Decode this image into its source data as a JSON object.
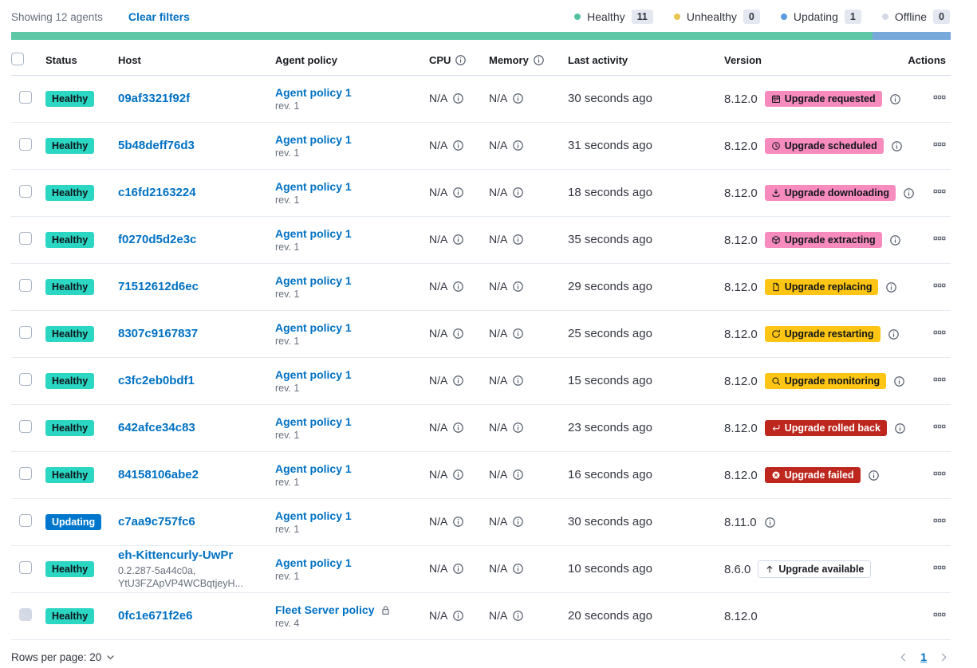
{
  "topbar": {
    "showing": "Showing 12 agents",
    "clear_filters": "Clear filters"
  },
  "legend": [
    {
      "label": "Healthy",
      "count": "11",
      "color": "#54c2a2"
    },
    {
      "label": "Unhealthy",
      "count": "0",
      "color": "#e7c54e"
    },
    {
      "label": "Updating",
      "count": "1",
      "color": "#599bde"
    },
    {
      "label": "Offline",
      "count": "0",
      "color": "#d3dae6"
    }
  ],
  "health_bar": {
    "segments": [
      {
        "status": "healthy",
        "color": "#5ec8a6",
        "fraction": 11
      },
      {
        "status": "updating",
        "color": "#78a9db",
        "fraction": 1
      }
    ]
  },
  "table": {
    "headers": {
      "status": "Status",
      "host": "Host",
      "policy": "Agent policy",
      "cpu": "CPU",
      "memory": "Memory",
      "last_activity": "Last activity",
      "version": "Version",
      "actions": "Actions"
    }
  },
  "rows": [
    {
      "status": {
        "label": "Healthy",
        "variant": "success"
      },
      "host": {
        "name": "09af3321f92f",
        "sub": []
      },
      "policy": {
        "name": "Agent policy 1",
        "rev": "rev. 1",
        "locked": false
      },
      "cpu": "N/A",
      "memory": "N/A",
      "last_activity": "30 seconds ago",
      "version": "8.12.0",
      "upgrade_badge": {
        "label": "Upgrade requested",
        "icon": "calendar-icon",
        "variant": "pink"
      },
      "version_info_icon": true,
      "checkbox_disabled": false
    },
    {
      "status": {
        "label": "Healthy",
        "variant": "success"
      },
      "host": {
        "name": "5b48deff76d3",
        "sub": []
      },
      "policy": {
        "name": "Agent policy 1",
        "rev": "rev. 1",
        "locked": false
      },
      "cpu": "N/A",
      "memory": "N/A",
      "last_activity": "31 seconds ago",
      "version": "8.12.0",
      "upgrade_badge": {
        "label": "Upgrade scheduled",
        "icon": "clock-icon",
        "variant": "pink"
      },
      "version_info_icon": true,
      "checkbox_disabled": false
    },
    {
      "status": {
        "label": "Healthy",
        "variant": "success"
      },
      "host": {
        "name": "c16fd2163224",
        "sub": []
      },
      "policy": {
        "name": "Agent policy 1",
        "rev": "rev. 1",
        "locked": false
      },
      "cpu": "N/A",
      "memory": "N/A",
      "last_activity": "18 seconds ago",
      "version": "8.12.0",
      "upgrade_badge": {
        "label": "Upgrade downloading",
        "icon": "download-icon",
        "variant": "pink"
      },
      "version_info_icon": true,
      "checkbox_disabled": false
    },
    {
      "status": {
        "label": "Healthy",
        "variant": "success"
      },
      "host": {
        "name": "f0270d5d2e3c",
        "sub": []
      },
      "policy": {
        "name": "Agent policy 1",
        "rev": "rev. 1",
        "locked": false
      },
      "cpu": "N/A",
      "memory": "N/A",
      "last_activity": "35 seconds ago",
      "version": "8.12.0",
      "upgrade_badge": {
        "label": "Upgrade extracting",
        "icon": "package-icon",
        "variant": "pink"
      },
      "version_info_icon": true,
      "checkbox_disabled": false
    },
    {
      "status": {
        "label": "Healthy",
        "variant": "success"
      },
      "host": {
        "name": "71512612d6ec",
        "sub": []
      },
      "policy": {
        "name": "Agent policy 1",
        "rev": "rev. 1",
        "locked": false
      },
      "cpu": "N/A",
      "memory": "N/A",
      "last_activity": "29 seconds ago",
      "version": "8.12.0",
      "upgrade_badge": {
        "label": "Upgrade replacing",
        "icon": "document-icon",
        "variant": "warning"
      },
      "version_info_icon": true,
      "checkbox_disabled": false
    },
    {
      "status": {
        "label": "Healthy",
        "variant": "success"
      },
      "host": {
        "name": "8307c9167837",
        "sub": []
      },
      "policy": {
        "name": "Agent policy 1",
        "rev": "rev. 1",
        "locked": false
      },
      "cpu": "N/A",
      "memory": "N/A",
      "last_activity": "25 seconds ago",
      "version": "8.12.0",
      "upgrade_badge": {
        "label": "Upgrade restarting",
        "icon": "refresh-icon",
        "variant": "warning"
      },
      "version_info_icon": true,
      "checkbox_disabled": false
    },
    {
      "status": {
        "label": "Healthy",
        "variant": "success"
      },
      "host": {
        "name": "c3fc2eb0bdf1",
        "sub": []
      },
      "policy": {
        "name": "Agent policy 1",
        "rev": "rev. 1",
        "locked": false
      },
      "cpu": "N/A",
      "memory": "N/A",
      "last_activity": "15 seconds ago",
      "version": "8.12.0",
      "upgrade_badge": {
        "label": "Upgrade monitoring",
        "icon": "inspect-icon",
        "variant": "warning"
      },
      "version_info_icon": true,
      "checkbox_disabled": false
    },
    {
      "status": {
        "label": "Healthy",
        "variant": "success"
      },
      "host": {
        "name": "642afce34c83",
        "sub": []
      },
      "policy": {
        "name": "Agent policy 1",
        "rev": "rev. 1",
        "locked": false
      },
      "cpu": "N/A",
      "memory": "N/A",
      "last_activity": "23 seconds ago",
      "version": "8.12.0",
      "upgrade_badge": {
        "label": "Upgrade rolled back",
        "icon": "return-icon",
        "variant": "danger"
      },
      "version_info_icon": true,
      "checkbox_disabled": false
    },
    {
      "status": {
        "label": "Healthy",
        "variant": "success"
      },
      "host": {
        "name": "84158106abe2",
        "sub": []
      },
      "policy": {
        "name": "Agent policy 1",
        "rev": "rev. 1",
        "locked": false
      },
      "cpu": "N/A",
      "memory": "N/A",
      "last_activity": "16 seconds ago",
      "version": "8.12.0",
      "upgrade_badge": {
        "label": "Upgrade failed",
        "icon": "error-icon",
        "variant": "danger"
      },
      "version_info_icon": true,
      "checkbox_disabled": false
    },
    {
      "status": {
        "label": "Updating",
        "variant": "primary"
      },
      "host": {
        "name": "c7aa9c757fc6",
        "sub": []
      },
      "policy": {
        "name": "Agent policy 1",
        "rev": "rev. 1",
        "locked": false
      },
      "cpu": "N/A",
      "memory": "N/A",
      "last_activity": "30 seconds ago",
      "version": "8.11.0",
      "upgrade_badge": null,
      "version_info_icon": true,
      "checkbox_disabled": false
    },
    {
      "status": {
        "label": "Healthy",
        "variant": "success"
      },
      "host": {
        "name": "eh-Kittencurly-UwPr",
        "sub": [
          "0.2.287-5a44c0a,",
          "YtU3FZApVP4WCBqtjeyH..."
        ]
      },
      "policy": {
        "name": "Agent policy 1",
        "rev": "rev. 1",
        "locked": false
      },
      "cpu": "N/A",
      "memory": "N/A",
      "last_activity": "10 seconds ago",
      "version": "8.6.0",
      "upgrade_badge": {
        "label": "Upgrade available",
        "icon": "up-arrow-icon",
        "variant": "hollow"
      },
      "version_info_icon": false,
      "checkbox_disabled": false
    },
    {
      "status": {
        "label": "Healthy",
        "variant": "success"
      },
      "host": {
        "name": "0fc1e671f2e6",
        "sub": []
      },
      "policy": {
        "name": "Fleet Server policy",
        "rev": "rev. 4",
        "locked": true
      },
      "cpu": "N/A",
      "memory": "N/A",
      "last_activity": "20 seconds ago",
      "version": "8.12.0",
      "upgrade_badge": null,
      "version_info_icon": false,
      "checkbox_disabled": true
    }
  ],
  "footer": {
    "rows_per_page": "Rows per page: 20",
    "page": "1"
  }
}
